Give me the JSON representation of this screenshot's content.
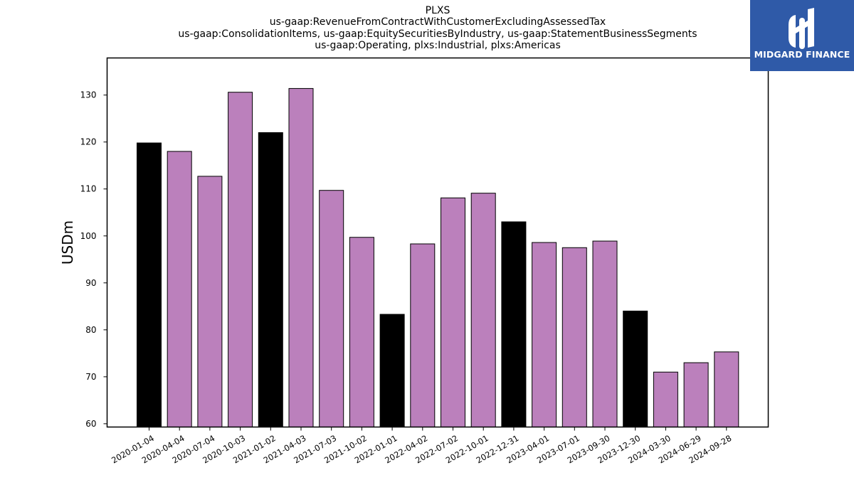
{
  "title_lines": [
    "PLXS",
    "us-gaap:RevenueFromContractWithCustomerExcludingAssessedTax",
    "us-gaap:ConsolidationItems, us-gaap:EquitySecuritiesByIndustry, us-gaap:StatementBusinessSegments",
    "us-gaap:Operating, plxs:Industrial, plxs:Americas"
  ],
  "logo": {
    "text": "MIDGARD FINANCE",
    "background": "#2f5aa8",
    "foreground": "#ffffff"
  },
  "chart_data": {
    "type": "bar",
    "title": "PLXS\nus-gaap:RevenueFromContractWithCustomerExcludingAssessedTax\nus-gaap:ConsolidationItems, us-gaap:EquitySecuritiesByIndustry, us-gaap:StatementBusinessSegments\nus-gaap:Operating, plxs:Industrial, plxs:Americas",
    "xlabel": "",
    "ylabel": "USDm",
    "ylim": [
      59.3,
      137.9
    ],
    "yticks": [
      60,
      70,
      80,
      90,
      100,
      110,
      120,
      130
    ],
    "grid": false,
    "categories": [
      "2020-01-04",
      "2020-04-04",
      "2020-07-04",
      "2020-10-03",
      "2021-01-02",
      "2021-04-03",
      "2021-07-03",
      "2021-10-02",
      "2022-01-01",
      "2022-04-02",
      "2022-07-02",
      "2022-10-01",
      "2022-12-31",
      "2023-04-01",
      "2023-07-01",
      "2023-09-30",
      "2023-12-30",
      "2024-03-30",
      "2024-06-29",
      "2024-09-28"
    ],
    "values": [
      119.8,
      118.0,
      112.7,
      130.6,
      122.0,
      131.4,
      109.7,
      99.7,
      83.3,
      98.3,
      108.1,
      109.1,
      103.0,
      98.6,
      97.5,
      98.9,
      84.0,
      71.0,
      73.0,
      75.3
    ],
    "bar_colors": [
      "#000000",
      "#bb80bc",
      "#bb80bc",
      "#bb80bc",
      "#000000",
      "#bb80bc",
      "#bb80bc",
      "#bb80bc",
      "#000000",
      "#bb80bc",
      "#bb80bc",
      "#bb80bc",
      "#000000",
      "#bb80bc",
      "#bb80bc",
      "#bb80bc",
      "#000000",
      "#bb80bc",
      "#bb80bc",
      "#bb80bc"
    ],
    "edge_color": "#000000"
  }
}
